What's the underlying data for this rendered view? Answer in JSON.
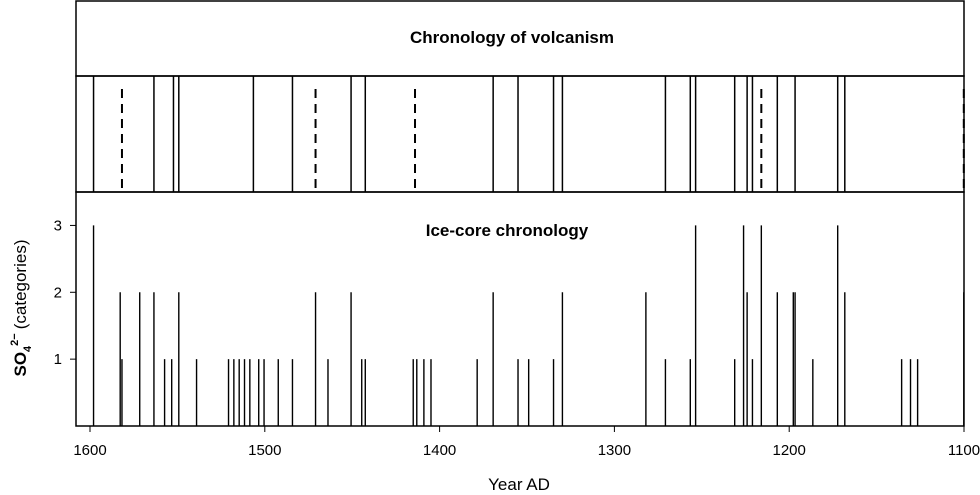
{
  "chart_data": [
    {
      "type": "bar",
      "title": "Chronology of volcanism",
      "xlabel": "Year AD",
      "xlim": [
        1600,
        1100
      ],
      "x_reversed": true,
      "events": [
        {
          "year": 1598,
          "style": "solid"
        },
        {
          "year": 1582,
          "style": "dashed"
        },
        {
          "year": 1564,
          "style": "solid"
        },
        {
          "year": 1553,
          "style": "solid"
        },
        {
          "year": 1550,
          "style": "solid"
        },
        {
          "year": 1508,
          "style": "solid"
        },
        {
          "year": 1486,
          "style": "solid"
        },
        {
          "year": 1473,
          "style": "dashed"
        },
        {
          "year": 1453,
          "style": "solid"
        },
        {
          "year": 1445,
          "style": "solid"
        },
        {
          "year": 1417,
          "style": "dashed"
        },
        {
          "year": 1373,
          "style": "solid"
        },
        {
          "year": 1359,
          "style": "solid"
        },
        {
          "year": 1339,
          "style": "solid"
        },
        {
          "year": 1334,
          "style": "solid"
        },
        {
          "year": 1276,
          "style": "solid"
        },
        {
          "year": 1262,
          "style": "solid"
        },
        {
          "year": 1259,
          "style": "solid"
        },
        {
          "year": 1237,
          "style": "solid"
        },
        {
          "year": 1230,
          "style": "solid"
        },
        {
          "year": 1227,
          "style": "solid"
        },
        {
          "year": 1222,
          "style": "dashed"
        },
        {
          "year": 1213,
          "style": "solid"
        },
        {
          "year": 1203,
          "style": "solid"
        },
        {
          "year": 1179,
          "style": "solid"
        },
        {
          "year": 1175,
          "style": "solid"
        },
        {
          "year": 1108,
          "style": "dashed"
        }
      ]
    },
    {
      "type": "bar",
      "title": "Ice-core chronology",
      "xlabel": "Year AD",
      "ylabel": "(categories)",
      "ylabel_chem": {
        "base": "SO",
        "sub": "4",
        "sup": "2−"
      },
      "xlim": [
        1600,
        1100
      ],
      "x_reversed": true,
      "ylim": [
        0,
        3.5
      ],
      "xticks": [
        "1600",
        "1500",
        "1400",
        "1300",
        "1200",
        "1100"
      ],
      "yticks": [
        "1",
        "2",
        "3"
      ],
      "x": [
        1598,
        1583,
        1582,
        1572,
        1564,
        1558,
        1554,
        1550,
        1540,
        1522,
        1519,
        1516,
        1513,
        1510,
        1505,
        1502,
        1494,
        1486,
        1473,
        1466,
        1453,
        1447,
        1445,
        1418,
        1416,
        1412,
        1408,
        1382,
        1373,
        1359,
        1353,
        1339,
        1334,
        1287,
        1276,
        1262,
        1259,
        1237,
        1232,
        1230,
        1227,
        1222,
        1213,
        1204,
        1203,
        1193,
        1179,
        1175,
        1143,
        1138,
        1134,
        1108
      ],
      "values": [
        3,
        2,
        1,
        2,
        2,
        1,
        1,
        2,
        1,
        1,
        1,
        1,
        1,
        1,
        1,
        1,
        1,
        1,
        2,
        1,
        2,
        1,
        1,
        1,
        1,
        1,
        1,
        1,
        2,
        1,
        1,
        1,
        2,
        2,
        1,
        1,
        3,
        1,
        3,
        2,
        1,
        3,
        2,
        2,
        2,
        1,
        3,
        2,
        1,
        1,
        1,
        2
      ]
    }
  ]
}
